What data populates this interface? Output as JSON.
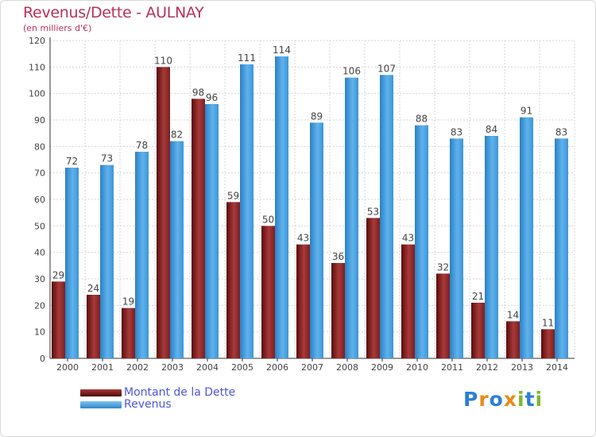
{
  "title": "Revenus/Dette - AULNAY",
  "subtitle": "(en milliers d'€)",
  "colors": {
    "title": "#b83058",
    "dette_dark": "#5a0c0c",
    "dette_light": "#a83a3a",
    "revenus_dark": "#2c80c4",
    "revenus_light": "#5fb2ec",
    "legend_text": "#4d57d6",
    "grid": "#d6d6d6"
  },
  "legend": [
    {
      "label": "Montant de la Dette",
      "series": "dette"
    },
    {
      "label": "Revenus",
      "series": "revenus"
    }
  ],
  "brand": {
    "logo_text": "Proxiti",
    "letters": [
      {
        "char": "P",
        "color": "#2b7fd4"
      },
      {
        "char": "r",
        "color": "#e98b1a"
      },
      {
        "char": "o",
        "color": "#2b7fd4"
      },
      {
        "char": "x",
        "color": "#e98b1a"
      },
      {
        "char": "i",
        "color": "#7cb82f"
      },
      {
        "char": "t",
        "color": "#2b7fd4"
      },
      {
        "char": "i",
        "color": "#7cb82f"
      }
    ]
  },
  "chart_data": {
    "type": "bar",
    "title": "Revenus/Dette - AULNAY",
    "subtitle": "(en milliers d'€)",
    "xlabel": "",
    "ylabel": "",
    "ylim": [
      0,
      120
    ],
    "yticks": [
      0,
      10,
      20,
      30,
      40,
      50,
      60,
      70,
      80,
      90,
      100,
      110,
      120
    ],
    "grid": true,
    "legend_position": "bottom-left",
    "categories": [
      "2000",
      "2001",
      "2002",
      "2003",
      "2004",
      "2005",
      "2006",
      "2007",
      "2008",
      "2009",
      "2010",
      "2011",
      "2012",
      "2013",
      "2014"
    ],
    "series": [
      {
        "name": "Montant de la Dette",
        "key": "dette",
        "values": [
          29,
          24,
          19,
          110,
          98,
          59,
          50,
          43,
          36,
          53,
          43,
          32,
          21,
          14,
          11
        ]
      },
      {
        "name": "Revenus",
        "key": "revenus",
        "values": [
          72,
          73,
          78,
          82,
          96,
          111,
          114,
          89,
          106,
          107,
          88,
          83,
          84,
          91,
          83
        ]
      }
    ]
  }
}
